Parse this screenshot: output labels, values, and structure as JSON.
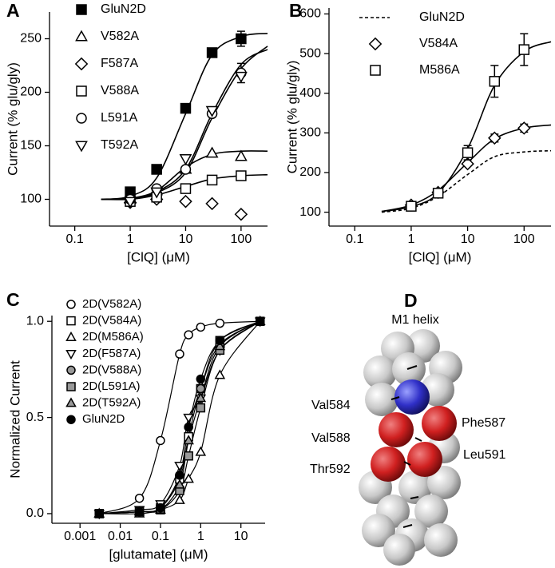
{
  "chart_data": [
    {
      "type": "scatter",
      "panel_label": "A",
      "x_label": "[ClQ] (μM)",
      "y_label": "Current  (% glu/gly)",
      "log_x": true,
      "xlim": [
        0.035,
        300
      ],
      "xticks": [
        0.1,
        1,
        10,
        100
      ],
      "ylim": [
        75,
        275
      ],
      "yticks": [
        100,
        150,
        200,
        250
      ],
      "x": [
        1,
        3,
        10,
        30,
        100
      ],
      "fit_x": [
        0.3,
        1,
        3,
        10,
        30,
        100,
        300
      ],
      "series": [
        {
          "name": "GluN2D",
          "marker": "square",
          "color": "#000000",
          "values": [
            107,
            128,
            185,
            237,
            250
          ],
          "errors": [
            null,
            null,
            null,
            null,
            7
          ],
          "fit": [
            100,
            103,
            120,
            180,
            235,
            252,
            255
          ]
        },
        {
          "name": "V582A",
          "marker": "triangle-up",
          "color": "#ffffff",
          "values": [
            100,
            108,
            128,
            143,
            140
          ],
          "fit": [
            100,
            101,
            108,
            130,
            142,
            145,
            145
          ]
        },
        {
          "name": "F587A",
          "marker": "diamond",
          "color": "#ffffff",
          "values": [
            97,
            100,
            98,
            96,
            86
          ]
        },
        {
          "name": "V588A",
          "marker": "square",
          "color": "#ffffff",
          "values": [
            98,
            102,
            110,
            118,
            122
          ],
          "fit": [
            100,
            100,
            104,
            112,
            119,
            122,
            123
          ]
        },
        {
          "name": "L591A",
          "marker": "circle",
          "color": "#ffffff",
          "values": [
            100,
            110,
            128,
            180,
            218
          ],
          "errors": [
            null,
            null,
            null,
            null,
            9
          ],
          "fit": [
            100,
            101,
            107,
            128,
            180,
            226,
            240
          ]
        },
        {
          "name": "T592A",
          "marker": "triangle-down",
          "color": "#ffffff",
          "values": [
            98,
            107,
            138,
            183,
            215
          ],
          "fit": [
            100,
            101,
            106,
            125,
            176,
            222,
            243
          ]
        }
      ]
    },
    {
      "type": "scatter",
      "panel_label": "B",
      "x_label": "[ClQ] (μM)",
      "y_label": "Current  (% glu/gly)",
      "log_x": true,
      "xlim": [
        0.035,
        300
      ],
      "xticks": [
        0.1,
        1,
        10,
        100
      ],
      "ylim": [
        65,
        615
      ],
      "yticks": [
        100,
        200,
        300,
        400,
        500,
        600
      ],
      "x": [
        1,
        3,
        10,
        30,
        100
      ],
      "fit_x": [
        0.3,
        1,
        3,
        10,
        30,
        100,
        300
      ],
      "series": [
        {
          "name": "GluN2D",
          "dash": true,
          "color": "#000000",
          "fit": [
            100,
            110,
            140,
            195,
            240,
            252,
            255
          ]
        },
        {
          "name": "V584A",
          "marker": "diamond",
          "color": "#ffffff",
          "values": [
            118,
            150,
            222,
            287,
            312
          ],
          "errors": [
            null,
            null,
            null,
            10,
            10
          ],
          "fit": [
            102,
            118,
            155,
            225,
            285,
            312,
            320
          ]
        },
        {
          "name": "M586A",
          "marker": "square",
          "color": "#ffffff",
          "values": [
            115,
            148,
            250,
            430,
            510
          ],
          "errors": [
            null,
            null,
            18,
            40,
            40
          ],
          "fit": [
            102,
            114,
            148,
            260,
            420,
            505,
            530
          ]
        }
      ]
    },
    {
      "type": "line",
      "panel_label": "C",
      "x_label": "[glutamate] (μM)",
      "y_label": "Normalized Current",
      "log_x": true,
      "xlim": [
        0.0002,
        40
      ],
      "xticks": [
        0.001,
        0.01,
        0.1,
        1,
        10
      ],
      "ylim": [
        -0.05,
        1.03
      ],
      "yticks": [
        {
          "value": 0,
          "label": "0.0"
        },
        0.5,
        {
          "value": 1,
          "label": "1.0"
        }
      ],
      "x": [
        0.003,
        0.03,
        0.1,
        0.3,
        0.5,
        1,
        3,
        30
      ],
      "series": [
        {
          "name": "2D(V582A)",
          "marker": "circle",
          "color": "#ffffff",
          "values": [
            0,
            0.08,
            0.38,
            0.83,
            0.93,
            0.97,
            0.99,
            1.0
          ]
        },
        {
          "name": "2D(V584A)",
          "marker": "square",
          "color": "#ffffff",
          "values": [
            0,
            0.01,
            0.03,
            0.18,
            0.4,
            0.65,
            0.9,
            1.0
          ]
        },
        {
          "name": "2D(M586A)",
          "marker": "triangle-up",
          "color": "#ffffff",
          "values": [
            0,
            0,
            0.02,
            0.07,
            0.18,
            0.32,
            0.72,
            1.0
          ]
        },
        {
          "name": "2D(F587A)",
          "marker": "triangle-down",
          "color": "#ffffff",
          "values": [
            0,
            0.02,
            0.05,
            0.25,
            0.5,
            0.6,
            0.85,
            1.0
          ]
        },
        {
          "name": "2D(V588A)",
          "marker": "circle",
          "color": "#999999",
          "values": [
            0,
            0.01,
            0.03,
            0.2,
            0.45,
            0.65,
            0.88,
            1.0
          ]
        },
        {
          "name": "2D(L591A)",
          "marker": "square",
          "color": "#999999",
          "values": [
            0,
            0.01,
            0.02,
            0.12,
            0.3,
            0.55,
            0.85,
            1.0
          ]
        },
        {
          "name": "2D(T592A)",
          "marker": "triangle-up",
          "color": "#999999",
          "values": [
            0,
            0.01,
            0.02,
            0.15,
            0.38,
            0.6,
            0.87,
            1.0
          ]
        },
        {
          "name": "GluN2D",
          "marker": "circle",
          "color": "#000000",
          "values": [
            0,
            0.01,
            0.03,
            0.2,
            0.45,
            0.7,
            0.9,
            1.0
          ]
        }
      ]
    }
  ],
  "diagram": {
    "label": "D",
    "title": "M1 helix",
    "residues": [
      "Val584",
      "Phe587",
      "Val588",
      "Leu591",
      "Thr592"
    ]
  }
}
